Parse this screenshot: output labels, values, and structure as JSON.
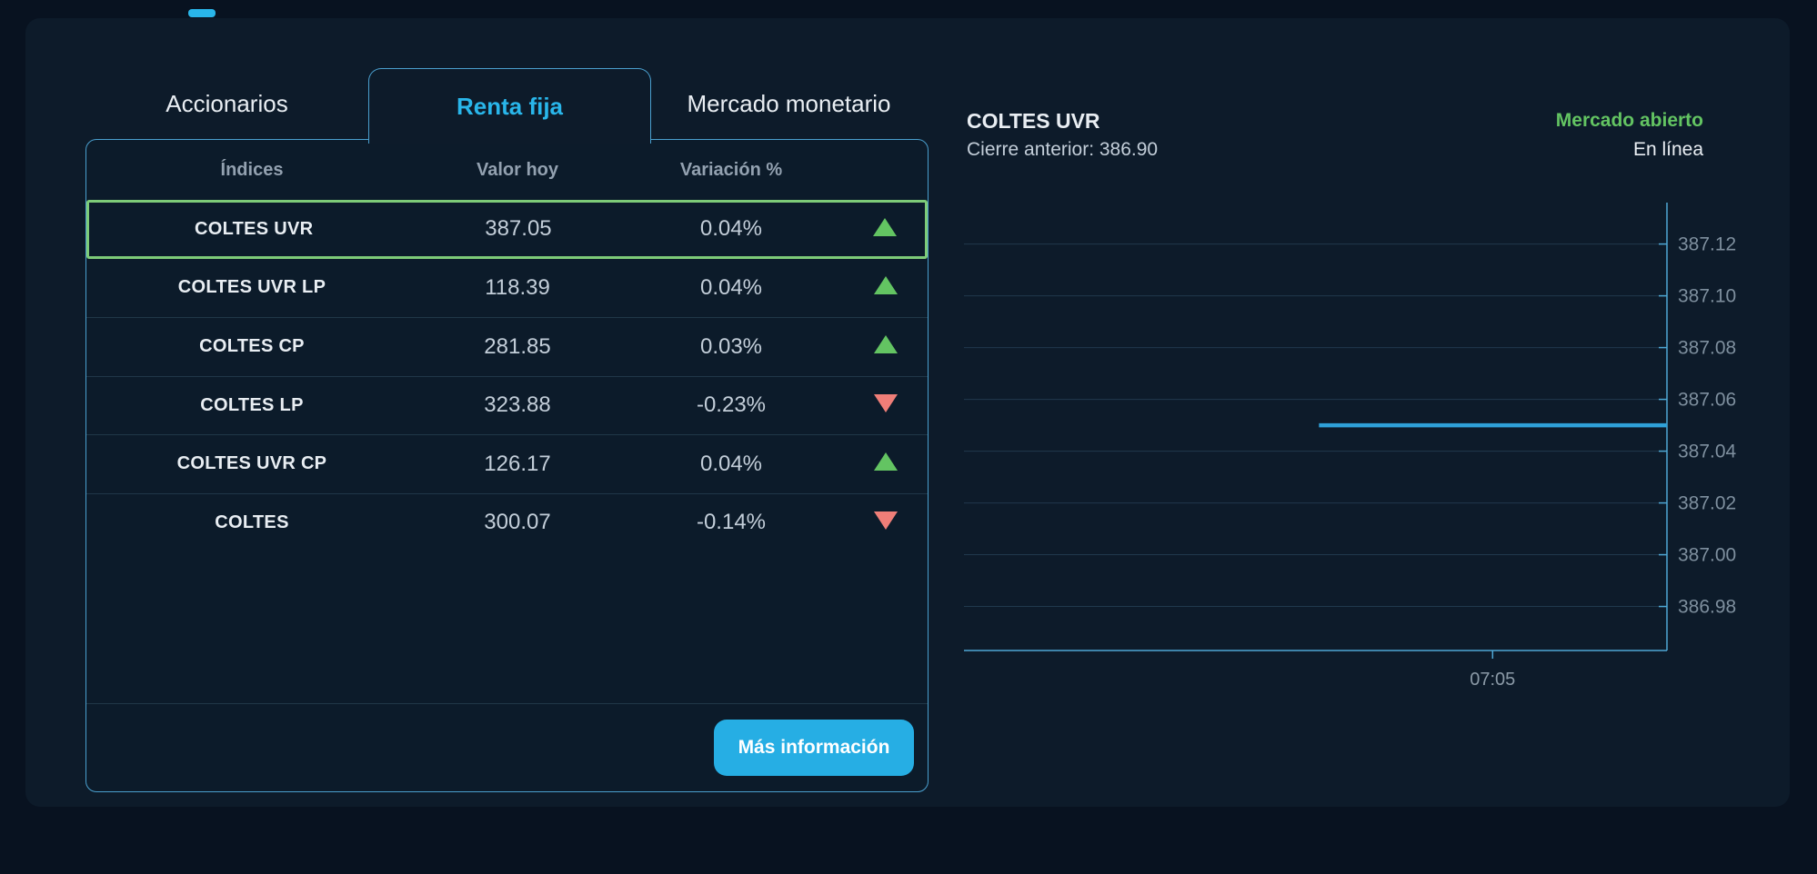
{
  "tabs": [
    {
      "label": "Accionarios",
      "active": false
    },
    {
      "label": "Renta fija",
      "active": true
    },
    {
      "label": "Mercado monetario",
      "active": false
    }
  ],
  "table": {
    "headers": [
      "Índices",
      "Valor hoy",
      "Variación %"
    ],
    "rows": [
      {
        "name": "COLTES UVR",
        "value": "387.05",
        "variation": "0.04%",
        "direction": "up",
        "selected": true
      },
      {
        "name": "COLTES UVR LP",
        "value": "118.39",
        "variation": "0.04%",
        "direction": "up",
        "selected": false
      },
      {
        "name": "COLTES CP",
        "value": "281.85",
        "variation": "0.03%",
        "direction": "up",
        "selected": false
      },
      {
        "name": "COLTES LP",
        "value": "323.88",
        "variation": "-0.23%",
        "direction": "down",
        "selected": false
      },
      {
        "name": "COLTES UVR CP",
        "value": "126.17",
        "variation": "0.04%",
        "direction": "up",
        "selected": false
      },
      {
        "name": "COLTES",
        "value": "300.07",
        "variation": "-0.14%",
        "direction": "down",
        "selected": false
      }
    ],
    "more_info_label": "Más información"
  },
  "detail": {
    "title": "COLTES UVR",
    "previous_close_text": "Cierre anterior: 386.90",
    "market_status": "Mercado abierto",
    "online_status": "En línea"
  },
  "chart_data": {
    "type": "line",
    "title": "COLTES UVR",
    "previous_close": 386.9,
    "current_value": 387.05,
    "y_ticks": [
      "387.12",
      "387.10",
      "387.08",
      "387.06",
      "387.04",
      "387.02",
      "387.00",
      "386.98"
    ],
    "y_min": 386.963,
    "y_max": 387.136,
    "x_ticks": [
      {
        "label": "07:05",
        "frac": 0.752
      }
    ],
    "series": [
      {
        "name": "COLTES UVR",
        "value": 387.05,
        "start_frac": 0.505,
        "end_frac": 1.0
      }
    ],
    "grid": true,
    "legend": "none",
    "axis_side": "right"
  },
  "colors": {
    "accent": "#29b6ea",
    "button": "#26aee4",
    "green": "#63c462",
    "sel": "#7dcb78",
    "red": "#ef7e78",
    "border": "#4a9fce",
    "line": "#2fa1d9",
    "axis": "#4fa8d5",
    "grid": "#20394d",
    "page-bg": "#081220",
    "container-bg": "#0d1b2a"
  }
}
